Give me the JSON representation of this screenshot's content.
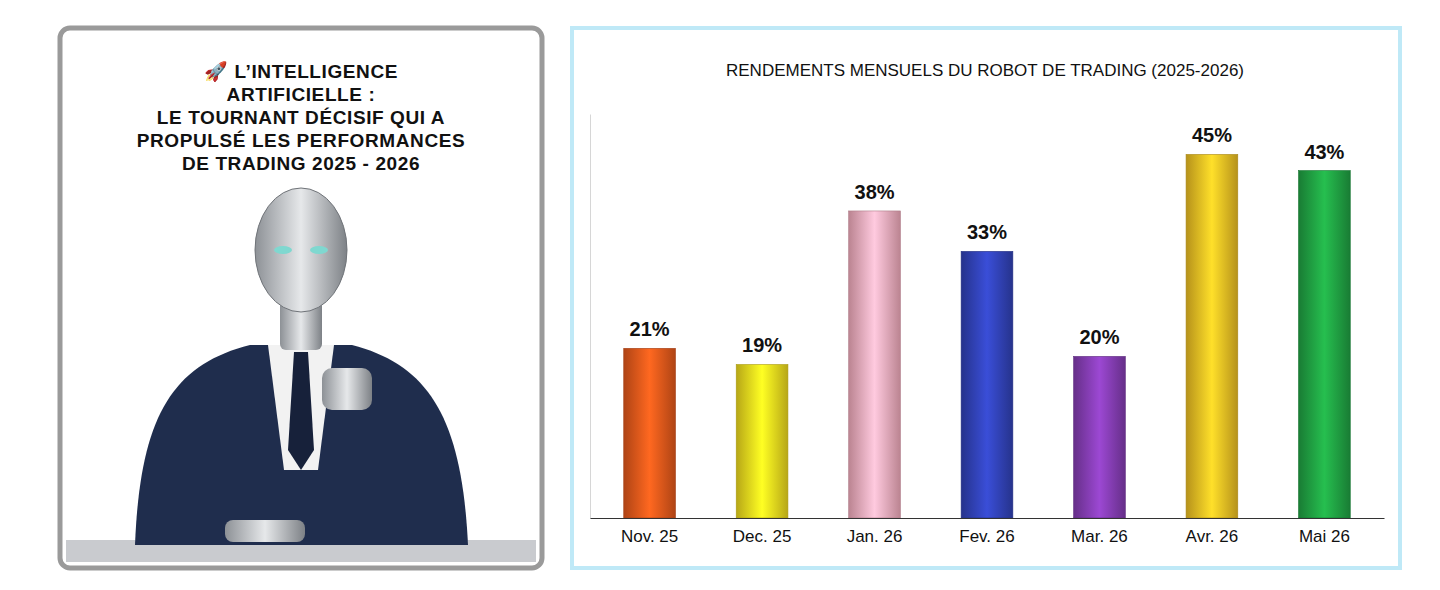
{
  "poster": {
    "title_lines": [
      "🚀 L’INTELLIGENCE",
      "ARTIFICIELLE :",
      "LE TOURNANT DÉCISIF QUI A",
      "PROPULSÉ LES PERFORMANCES",
      "DE TRADING 2025 - 2026"
    ]
  },
  "chart_data": {
    "type": "bar",
    "title": "RENDEMENTS MENSUELS DU ROBOT DE TRADING (2025-2026)",
    "categories": [
      "Nov. 25",
      "Dec. 25",
      "Jan. 26",
      "Fev. 26",
      "Mar. 26",
      "Avr. 26",
      "Mai 26"
    ],
    "values": [
      21,
      19,
      38,
      33,
      20,
      45,
      43
    ],
    "value_labels": [
      "21%",
      "19%",
      "38%",
      "33%",
      "20%",
      "45%",
      "43%"
    ],
    "colors": [
      "#d9541a",
      "#e3cf1c",
      "#e8a3b4",
      "#2f3fae",
      "#7e3aaa",
      "#e2b522",
      "#1f9a40"
    ],
    "ylim": [
      0,
      50
    ],
    "yticks": [],
    "grid": false,
    "data_labels": true,
    "tick_labels": "x"
  }
}
